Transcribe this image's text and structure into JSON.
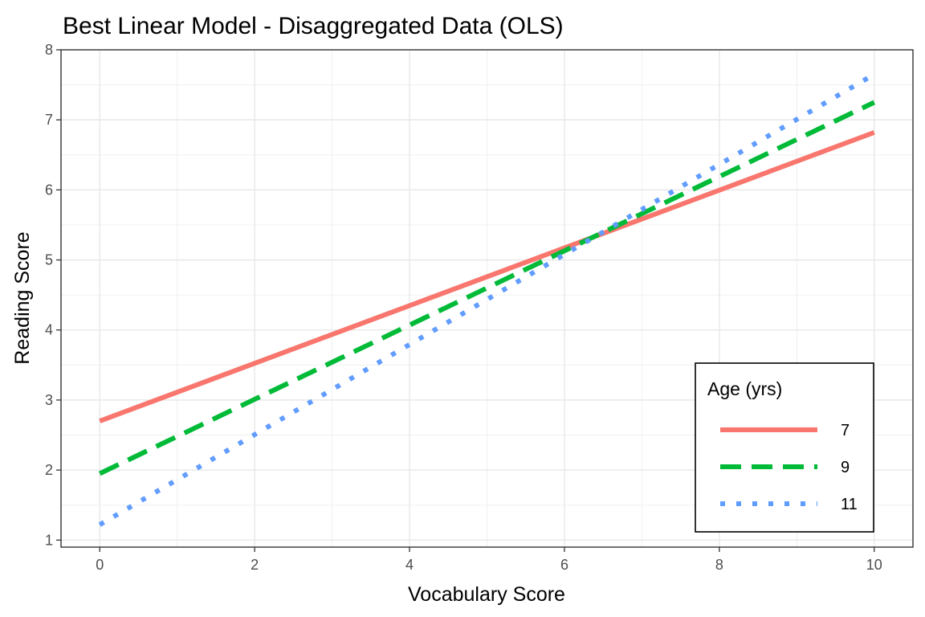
{
  "chart_data": {
    "type": "line",
    "title": "Best Linear Model - Disaggregated Data (OLS)",
    "xlabel": "Vocabulary Score",
    "ylabel": "Reading Score",
    "xlim": [
      -0.5,
      10.5
    ],
    "ylim": [
      0.9,
      8.0
    ],
    "x_ticks": [
      0,
      2,
      4,
      6,
      8,
      10
    ],
    "y_ticks": [
      1,
      2,
      3,
      4,
      5,
      6,
      7,
      8
    ],
    "x_tick_labels": [
      "0",
      "2",
      "4",
      "6",
      "8",
      "10"
    ],
    "y_tick_labels": [
      "1",
      "2",
      "3",
      "4",
      "5",
      "6",
      "7",
      "8"
    ],
    "grid": true,
    "legend": {
      "title": "Age (yrs)",
      "position": "bottom-right"
    },
    "series": [
      {
        "name": "7",
        "x": [
          0,
          10
        ],
        "y": [
          2.7,
          6.82
        ],
        "color": "#F8766D",
        "dash": "solid"
      },
      {
        "name": "9",
        "x": [
          0,
          10
        ],
        "y": [
          1.95,
          7.25
        ],
        "color": "#00BA38",
        "dash": "dashed"
      },
      {
        "name": "11",
        "x": [
          0,
          10
        ],
        "y": [
          1.22,
          7.65
        ],
        "color": "#619CFF",
        "dash": "dotted"
      }
    ]
  }
}
